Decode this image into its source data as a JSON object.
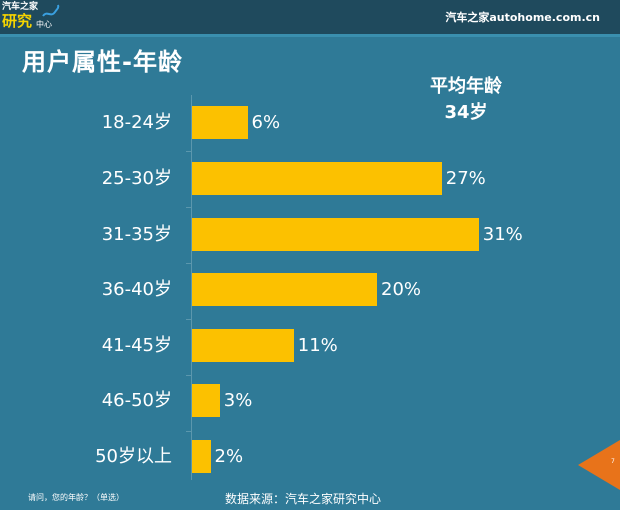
{
  "header": {
    "logo_line1": "汽车之家",
    "logo_line2": "研究",
    "logo_line3": "中心",
    "site": "汽车之家autohome.com.cn"
  },
  "page_title": "用户属性-年龄",
  "average": {
    "label": "平均年龄",
    "value": "34岁"
  },
  "colors": {
    "background": "#2f7a97",
    "header": "#1f4a5d",
    "bar": "#fcc100",
    "page_marker": "#e8731a"
  },
  "chart_data": {
    "type": "bar",
    "orientation": "horizontal",
    "title": "用户属性-年龄",
    "categories": [
      "18-24岁",
      "25-30岁",
      "31-35岁",
      "36-40岁",
      "41-45岁",
      "46-50岁",
      "50岁以上"
    ],
    "values": [
      6,
      27,
      31,
      20,
      11,
      3,
      2
    ],
    "value_labels": [
      "6%",
      "27%",
      "31%",
      "20%",
      "11%",
      "3%",
      "2%"
    ],
    "unit": "%",
    "xlabel": "",
    "ylabel": "",
    "grid": false,
    "legend": null,
    "annotation": "平均年龄 34岁"
  },
  "footer": {
    "question": "请问，您的年龄？（单选）",
    "source": "数据来源：汽车之家研究中心",
    "page_number": "7"
  }
}
